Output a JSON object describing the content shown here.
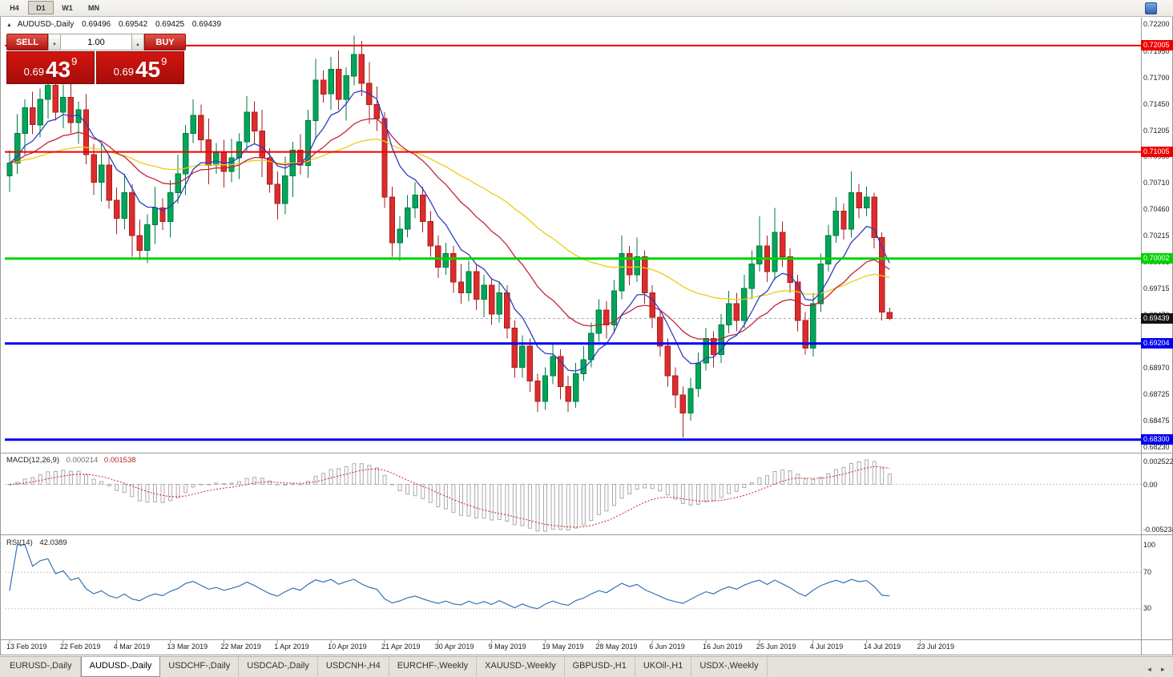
{
  "toolbar": {
    "timeframes": [
      {
        "label": "H4",
        "active": false
      },
      {
        "label": "D1",
        "active": true
      },
      {
        "label": "W1",
        "active": false
      },
      {
        "label": "MN",
        "active": false
      }
    ]
  },
  "header": {
    "title": "AUDUSD-,Daily",
    "open": "0.69496",
    "high": "0.69542",
    "low": "0.69425",
    "close": "0.69439"
  },
  "trade_panel": {
    "sell_label": "SELL",
    "buy_label": "BUY",
    "volume": "1.00",
    "sell_price": {
      "prefix": "0.69",
      "big": "43",
      "sup": "9"
    },
    "buy_price": {
      "prefix": "0.69",
      "big": "45",
      "sup": "9"
    }
  },
  "chart_data": {
    "type": "candlestick",
    "symbol": "AUDUSD-",
    "period": "Daily",
    "current_price": "0.69439",
    "x_labels": [
      "13 Feb 2019",
      "22 Feb 2019",
      "4 Mar 2019",
      "13 Mar 2019",
      "22 Mar 2019",
      "1 Apr 2019",
      "10 Apr 2019",
      "21 Apr 2019",
      "30 Apr 2019",
      "9 May 2019",
      "19 May 2019",
      "28 May 2019",
      "6 Jun 2019",
      "16 Jun 2019",
      "25 Jun 2019",
      "4 Jul 2019",
      "14 Jul 2019",
      "23 Jul 2019"
    ],
    "y_axis": {
      "ticks": [
        "0.72200",
        "0.71950",
        "0.71700",
        "0.71450",
        "0.71205",
        "0.70960",
        "0.70710",
        "0.70460",
        "0.70215",
        "0.69965",
        "0.69715",
        "0.69470",
        "0.69220",
        "0.68970",
        "0.68725",
        "0.68475",
        "0.68230"
      ]
    },
    "candles": [
      [
        0.7078,
        0.7102,
        0.7063,
        0.709
      ],
      [
        0.709,
        0.7136,
        0.708,
        0.7118
      ],
      [
        0.7118,
        0.715,
        0.7098,
        0.7142
      ],
      [
        0.7142,
        0.7157,
        0.7117,
        0.7126
      ],
      [
        0.7126,
        0.716,
        0.7114,
        0.715
      ],
      [
        0.715,
        0.7183,
        0.7132,
        0.7163
      ],
      [
        0.7163,
        0.7172,
        0.713,
        0.7138
      ],
      [
        0.7138,
        0.7164,
        0.7123,
        0.7152
      ],
      [
        0.7152,
        0.717,
        0.7118,
        0.7128
      ],
      [
        0.7128,
        0.7148,
        0.7108,
        0.714
      ],
      [
        0.714,
        0.7155,
        0.7089,
        0.7098
      ],
      [
        0.7098,
        0.7108,
        0.706,
        0.7072
      ],
      [
        0.7072,
        0.7108,
        0.7054,
        0.7088
      ],
      [
        0.7088,
        0.7097,
        0.7047,
        0.7055
      ],
      [
        0.7055,
        0.7067,
        0.7023,
        0.7038
      ],
      [
        0.7038,
        0.708,
        0.7028,
        0.7062
      ],
      [
        0.7062,
        0.707,
        0.7002,
        0.7022
      ],
      [
        0.7022,
        0.7037,
        0.6999,
        0.7008
      ],
      [
        0.7008,
        0.7042,
        0.6996,
        0.7032
      ],
      [
        0.7032,
        0.7068,
        0.7014,
        0.7048
      ],
      [
        0.7048,
        0.7057,
        0.7027,
        0.7035
      ],
      [
        0.7035,
        0.7074,
        0.702,
        0.7062
      ],
      [
        0.7062,
        0.7098,
        0.7052,
        0.708
      ],
      [
        0.708,
        0.7126,
        0.706,
        0.7118
      ],
      [
        0.7118,
        0.715,
        0.7109,
        0.7135
      ],
      [
        0.7135,
        0.7145,
        0.71,
        0.7112
      ],
      [
        0.7112,
        0.7132,
        0.707,
        0.7088
      ],
      [
        0.7088,
        0.7109,
        0.708,
        0.71
      ],
      [
        0.71,
        0.7112,
        0.7067,
        0.7082
      ],
      [
        0.7082,
        0.7113,
        0.7072,
        0.7095
      ],
      [
        0.7095,
        0.7118,
        0.7075,
        0.711
      ],
      [
        0.711,
        0.7153,
        0.7101,
        0.7138
      ],
      [
        0.7138,
        0.7148,
        0.7108,
        0.712
      ],
      [
        0.712,
        0.714,
        0.7077,
        0.7095
      ],
      [
        0.7095,
        0.7104,
        0.7062,
        0.707
      ],
      [
        0.707,
        0.7082,
        0.7037,
        0.7052
      ],
      [
        0.7052,
        0.7096,
        0.7042,
        0.7078
      ],
      [
        0.7078,
        0.711,
        0.7058,
        0.7102
      ],
      [
        0.7102,
        0.7117,
        0.7079,
        0.7088
      ],
      [
        0.7088,
        0.714,
        0.7076,
        0.713
      ],
      [
        0.713,
        0.7188,
        0.7112,
        0.7168
      ],
      [
        0.7168,
        0.7177,
        0.7147,
        0.7155
      ],
      [
        0.7155,
        0.719,
        0.714,
        0.7178
      ],
      [
        0.7178,
        0.7196,
        0.714,
        0.715
      ],
      [
        0.715,
        0.718,
        0.713,
        0.7172
      ],
      [
        0.7172,
        0.721,
        0.7163,
        0.7192
      ],
      [
        0.7192,
        0.7205,
        0.7153,
        0.7165
      ],
      [
        0.7165,
        0.7185,
        0.7127,
        0.7145
      ],
      [
        0.7145,
        0.7162,
        0.712,
        0.7132
      ],
      [
        0.7132,
        0.7138,
        0.7048,
        0.7058
      ],
      [
        0.7058,
        0.7068,
        0.7002,
        0.7015
      ],
      [
        0.7015,
        0.704,
        0.6998,
        0.7028
      ],
      [
        0.7028,
        0.706,
        0.702,
        0.7048
      ],
      [
        0.7048,
        0.7072,
        0.7038,
        0.706
      ],
      [
        0.706,
        0.7068,
        0.7025,
        0.7035
      ],
      [
        0.7035,
        0.7045,
        0.7002,
        0.7012
      ],
      [
        0.7012,
        0.7022,
        0.6982,
        0.6992
      ],
      [
        0.6992,
        0.7015,
        0.6985,
        0.7005
      ],
      [
        0.7005,
        0.7012,
        0.6968,
        0.6978
      ],
      [
        0.6978,
        0.6995,
        0.6958,
        0.6968
      ],
      [
        0.6968,
        0.6998,
        0.696,
        0.6988
      ],
      [
        0.6988,
        0.6995,
        0.6952,
        0.6962
      ],
      [
        0.6962,
        0.6985,
        0.6945,
        0.6975
      ],
      [
        0.6975,
        0.6982,
        0.6938,
        0.6948
      ],
      [
        0.6948,
        0.6978,
        0.694,
        0.6968
      ],
      [
        0.6968,
        0.6975,
        0.6925,
        0.6935
      ],
      [
        0.6935,
        0.6942,
        0.6888,
        0.6898
      ],
      [
        0.6898,
        0.6928,
        0.6888,
        0.6918
      ],
      [
        0.6918,
        0.6925,
        0.6875,
        0.6885
      ],
      [
        0.6885,
        0.6892,
        0.6856,
        0.6866
      ],
      [
        0.6866,
        0.6898,
        0.6858,
        0.689
      ],
      [
        0.689,
        0.692,
        0.6882,
        0.6908
      ],
      [
        0.6908,
        0.6915,
        0.6868,
        0.688
      ],
      [
        0.688,
        0.689,
        0.6856,
        0.6866
      ],
      [
        0.6866,
        0.6902,
        0.686,
        0.6892
      ],
      [
        0.6892,
        0.6918,
        0.6885,
        0.6905
      ],
      [
        0.6905,
        0.694,
        0.6898,
        0.693
      ],
      [
        0.693,
        0.6962,
        0.6922,
        0.6952
      ],
      [
        0.6952,
        0.696,
        0.6925,
        0.6938
      ],
      [
        0.6938,
        0.698,
        0.693,
        0.697
      ],
      [
        0.697,
        0.7022,
        0.6962,
        0.7005
      ],
      [
        0.7005,
        0.7012,
        0.6975,
        0.6985
      ],
      [
        0.6985,
        0.702,
        0.6978,
        0.7002
      ],
      [
        0.7002,
        0.7008,
        0.6958,
        0.6968
      ],
      [
        0.6968,
        0.6975,
        0.6935,
        0.6945
      ],
      [
        0.6945,
        0.6952,
        0.6908,
        0.6918
      ],
      [
        0.6918,
        0.6925,
        0.688,
        0.689
      ],
      [
        0.689,
        0.6898,
        0.686,
        0.6872
      ],
      [
        0.6872,
        0.688,
        0.6832,
        0.6855
      ],
      [
        0.6855,
        0.6888,
        0.6848,
        0.6878
      ],
      [
        0.6878,
        0.6912,
        0.687,
        0.6902
      ],
      [
        0.6902,
        0.6935,
        0.6895,
        0.6925
      ],
      [
        0.6925,
        0.6932,
        0.6898,
        0.691
      ],
      [
        0.691,
        0.6948,
        0.6902,
        0.6938
      ],
      [
        0.6938,
        0.697,
        0.693,
        0.6958
      ],
      [
        0.6958,
        0.6968,
        0.6932,
        0.6942
      ],
      [
        0.6942,
        0.6985,
        0.6935,
        0.6972
      ],
      [
        0.6972,
        0.7008,
        0.6962,
        0.6995
      ],
      [
        0.6995,
        0.704,
        0.6988,
        0.7012
      ],
      [
        0.7012,
        0.7022,
        0.6978,
        0.6988
      ],
      [
        0.6988,
        0.7048,
        0.698,
        0.7025
      ],
      [
        0.7025,
        0.7035,
        0.6992,
        0.7002
      ],
      [
        0.7002,
        0.701,
        0.6968,
        0.6978
      ],
      [
        0.6978,
        0.6985,
        0.6932,
        0.6942
      ],
      [
        0.6942,
        0.695,
        0.691,
        0.6916
      ],
      [
        0.6916,
        0.6968,
        0.6908,
        0.6958
      ],
      [
        0.6958,
        0.7005,
        0.695,
        0.6995
      ],
      [
        0.6995,
        0.7032,
        0.6988,
        0.7022
      ],
      [
        0.7022,
        0.7058,
        0.7015,
        0.7045
      ],
      [
        0.7045,
        0.7052,
        0.7018,
        0.7028
      ],
      [
        0.7028,
        0.7082,
        0.702,
        0.7062
      ],
      [
        0.7062,
        0.707,
        0.7038,
        0.7048
      ],
      [
        0.7048,
        0.7068,
        0.704,
        0.7058
      ],
      [
        0.7058,
        0.7062,
        0.701,
        0.702
      ],
      [
        0.702,
        0.7025,
        0.6942,
        0.695
      ],
      [
        0.69496,
        0.69542,
        0.69425,
        0.69439
      ]
    ],
    "levels": [
      {
        "price": "0.72005",
        "value": 0.72005,
        "color": "#ee0000",
        "width": 2
      },
      {
        "price": "0.71005",
        "value": 0.71005,
        "color": "#ee0000",
        "width": 2
      },
      {
        "price": "0.70002",
        "value": 0.70002,
        "color": "#00d300",
        "width": 3
      },
      {
        "price": "0.69204",
        "value": 0.69204,
        "color": "#0000ee",
        "width": 3
      },
      {
        "price": "0.68300",
        "value": 0.683,
        "color": "#0000ee",
        "width": 3
      }
    ],
    "colors": {
      "up": "#00a65a",
      "up_border": "#007a40",
      "down": "#df2b2b",
      "down_border": "#a32020",
      "macd_hist": "#ababab",
      "macd_signal": "#d02020",
      "rsi": "#3573b5",
      "current_badge": "#141414"
    },
    "moving_averages": [
      {
        "name": "slow-ma",
        "period": 50,
        "color": "#e9cd16"
      },
      {
        "name": "medium-ma",
        "period": 21,
        "color": "#c3243a"
      },
      {
        "name": "fast-ma",
        "period": 8,
        "color": "#2d3fbe"
      }
    ],
    "macd": {
      "label": "MACD(12,26,9)",
      "fast": 12,
      "slow": 26,
      "signal_period": 9,
      "value_main": "0.000214",
      "value_signal": "0.001538",
      "scale_max": "0.002522",
      "scale_zero": "0.00",
      "scale_min": "-0.005234"
    },
    "rsi": {
      "label": "RSI(14)",
      "period": 14,
      "value": "42.0389",
      "scale": [
        "100",
        "70",
        "30"
      ],
      "levels": [
        70,
        30
      ]
    }
  },
  "tab_bar": {
    "tabs": [
      {
        "label": "EURUSD-,Daily",
        "active": false
      },
      {
        "label": "AUDUSD-,Daily",
        "active": true
      },
      {
        "label": "USDCHF-,Daily",
        "active": false
      },
      {
        "label": "USDCAD-,Daily",
        "active": false
      },
      {
        "label": "USDCNH-,H4",
        "active": false
      },
      {
        "label": "EURCHF-,Weekly",
        "active": false
      },
      {
        "label": "XAUUSD-,Weekly",
        "active": false
      },
      {
        "label": "GBPUSD-,H1",
        "active": false
      },
      {
        "label": "UKOil-,H1",
        "active": false
      },
      {
        "label": "USDX-,Weekly",
        "active": false
      }
    ]
  }
}
